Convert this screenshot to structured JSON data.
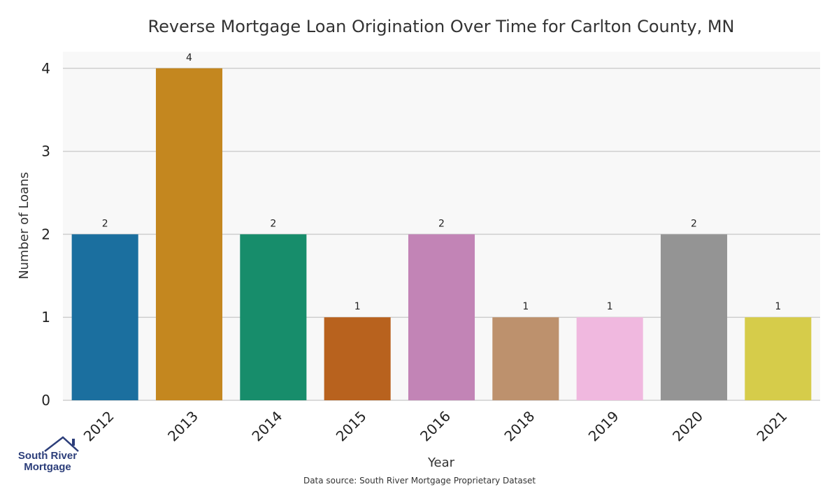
{
  "chart_data": {
    "type": "bar",
    "title": "Reverse Mortgage Loan Origination Over Time for Carlton County, MN",
    "xlabel": "Year",
    "ylabel": "Number of Loans",
    "categories": [
      "2012",
      "2013",
      "2014",
      "2015",
      "2016",
      "2018",
      "2019",
      "2020",
      "2021"
    ],
    "values": [
      2,
      4,
      2,
      1,
      2,
      1,
      1,
      2,
      1
    ],
    "ylim": [
      0,
      4.2
    ],
    "yticks": [
      0,
      1,
      2,
      3,
      4
    ],
    "colors": [
      "#1b6f9f",
      "#c4871f",
      "#178d6b",
      "#b8621e",
      "#c284b6",
      "#bd916d",
      "#f0b8df",
      "#949494",
      "#d6cc4a"
    ],
    "grid": true,
    "plot_background": "#f8f8f8"
  },
  "footer": {
    "source": "Data source: South River Mortgage Proprietary Dataset"
  },
  "logo": {
    "line1": "South River",
    "line2": "Mortgage"
  }
}
